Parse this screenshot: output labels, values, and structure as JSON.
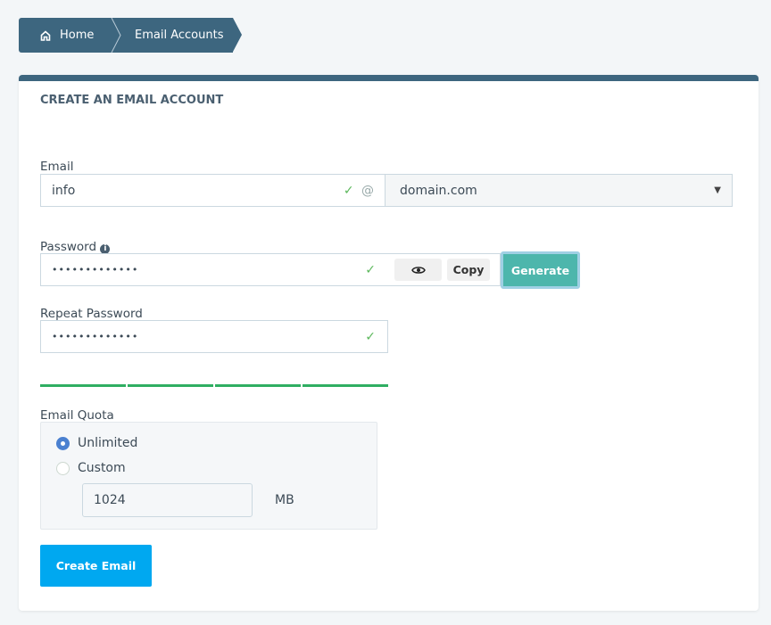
{
  "breadcrumb": {
    "home": "Home",
    "current": "Email Accounts"
  },
  "panel": {
    "title": "CREATE AN EMAIL ACCOUNT"
  },
  "form": {
    "email_label": "Email",
    "email_value": "info",
    "at": "@",
    "domain": "domain.com",
    "password_label": "Password",
    "password_value": "•••••••••••••",
    "copy_label": "Copy",
    "generate_label": "Generate",
    "repeat_label": "Repeat Password",
    "repeat_value": "•••••••••••••",
    "strength_segments_filled": 4,
    "quota_label": "Email Quota",
    "unlimited_label": "Unlimited",
    "custom_label": "Custom",
    "quota_selected": "Unlimited",
    "custom_value": "1024",
    "unit": "MB",
    "create_label": "Create Email"
  },
  "colors": {
    "primary": "#3d667f",
    "generate": "#4db6ac",
    "create": "#00a8f0",
    "strength": "#2fae62"
  }
}
